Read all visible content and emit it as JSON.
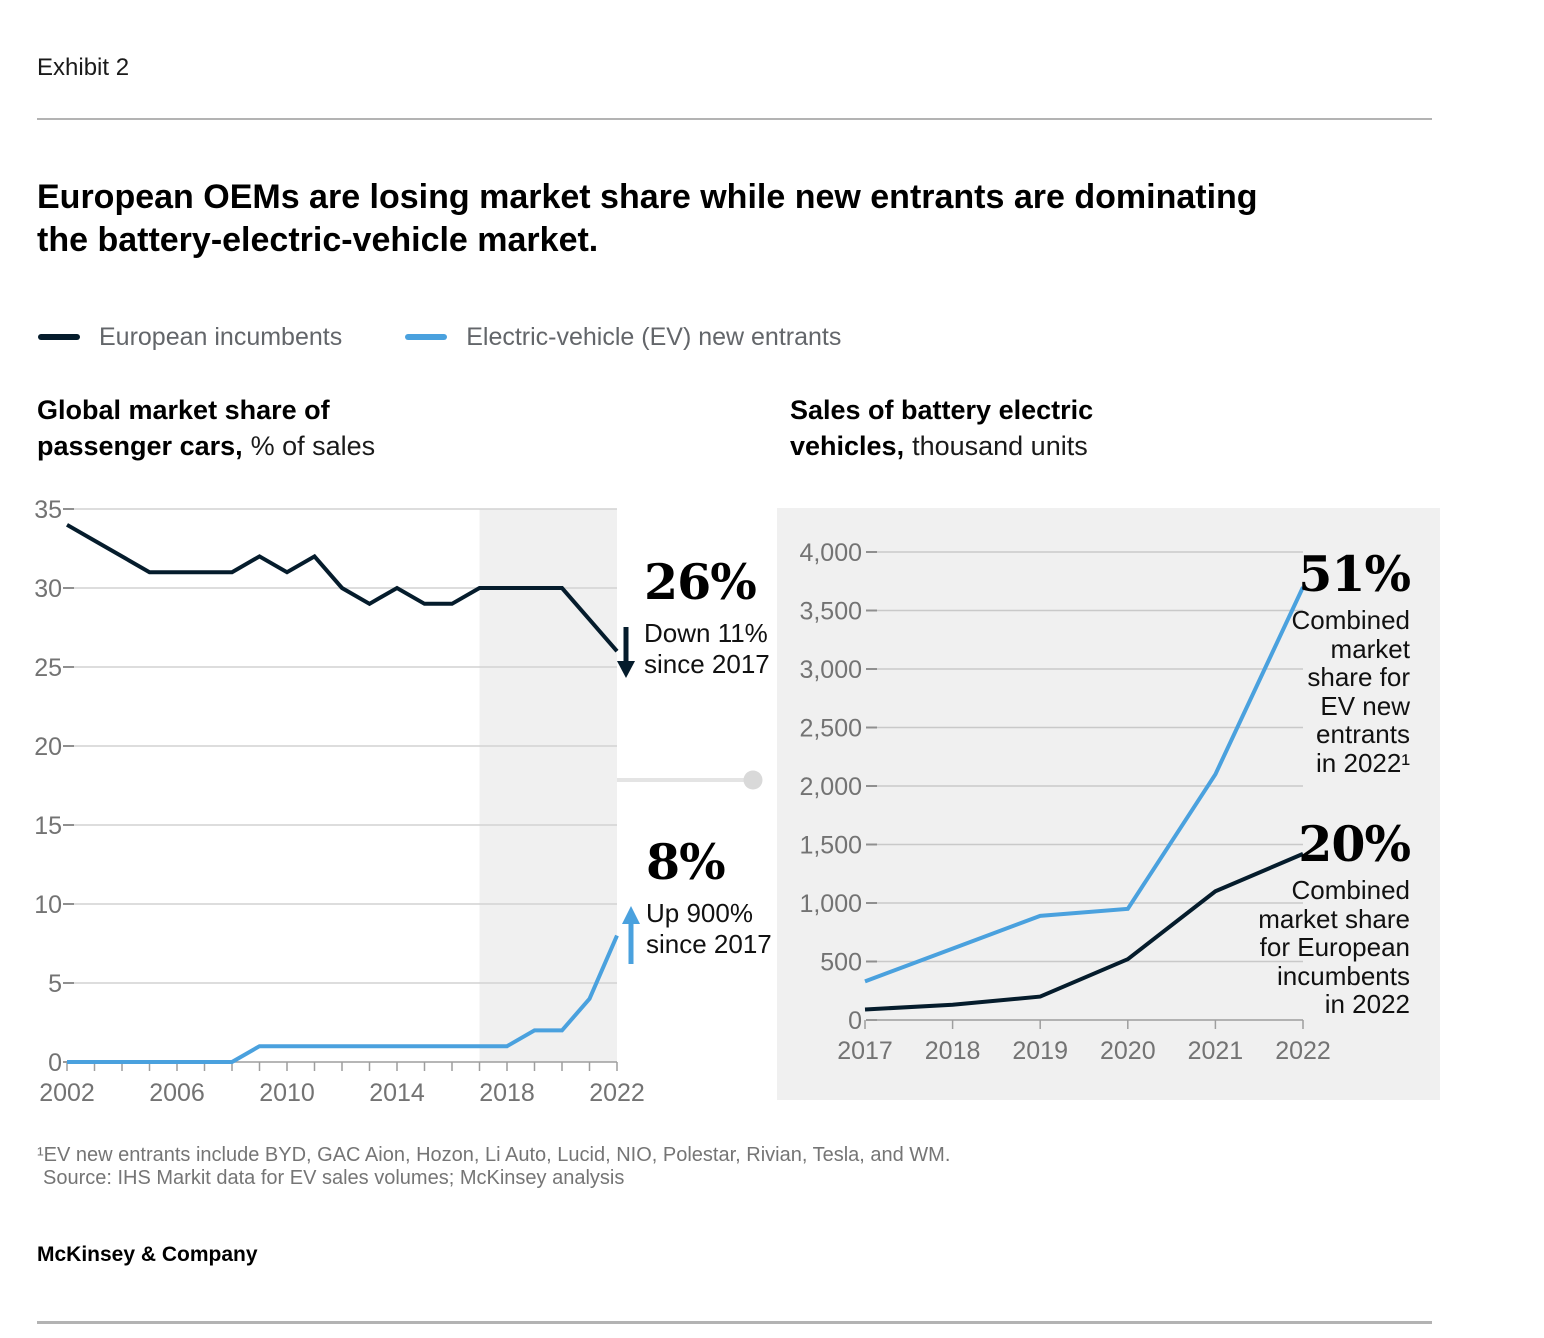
{
  "page": {
    "exhibit_label": "Exhibit 2",
    "title_line1": "European OEMs are losing market share while new entrants are dominating",
    "title_line2": "the battery-electric-vehicle market.",
    "footnote_line1": "¹EV new entrants include BYD, GAC Aion, Hozon, Li Auto, Lucid, NIO, Polestar, Rivian, Tesla, and WM.",
    "footnote_line2": "Source: IHS Markit data for EV sales volumes; McKinsey analysis",
    "logo": "McKinsey & Company"
  },
  "colors": {
    "incumbent_navy": "#051C2C",
    "ev_blue": "#4AA1DE",
    "panel_gray": "#F0F0F0"
  },
  "legend": {
    "items": [
      {
        "label": "European incumbents",
        "color": "#051C2C"
      },
      {
        "label": "Electric-vehicle (EV) new entrants",
        "color": "#4AA1DE"
      }
    ]
  },
  "left_chart": {
    "heading": {
      "bold_line1": "Global market share of",
      "bold_line2": "passenger cars,",
      "regular": "% of sales"
    },
    "annotation_top": {
      "value": "26%",
      "line1": "Down 11%",
      "line2": "since 2017"
    },
    "annotation_bottom": {
      "value": "8%",
      "line1": "Up 900%",
      "line2": "since 2017"
    }
  },
  "right_chart": {
    "heading": {
      "bold_line1": "Sales of battery electric",
      "bold_line2": "vehicles,",
      "regular": "thousand units"
    },
    "annotation_top": {
      "value": "51%",
      "lines": [
        "Combined",
        "market",
        "share for",
        "EV new",
        "entrants",
        "in 2022¹"
      ]
    },
    "annotation_bottom": {
      "value": "20%",
      "lines": [
        "Combined",
        "market share",
        "for European",
        "incumbents",
        "in 2022"
      ]
    }
  },
  "chart_data": [
    {
      "type": "line",
      "title": "Global market share of passenger cars, % of sales",
      "xlabel": "",
      "ylabel": "% of sales",
      "x": [
        2002,
        2003,
        2004,
        2005,
        2006,
        2007,
        2008,
        2009,
        2010,
        2011,
        2012,
        2013,
        2014,
        2015,
        2016,
        2017,
        2018,
        2019,
        2020,
        2021,
        2022
      ],
      "series": [
        {
          "name": "European incumbents",
          "color": "#051C2C",
          "values": [
            34,
            33,
            32,
            31,
            31,
            31,
            31,
            32,
            31,
            32,
            30,
            29,
            30,
            29,
            29,
            30,
            30,
            30,
            30,
            28,
            26
          ]
        },
        {
          "name": "Electric-vehicle (EV) new entrants",
          "color": "#4AA1DE",
          "values": [
            0,
            0,
            0,
            0,
            0,
            0,
            0,
            1,
            1,
            1,
            1,
            1,
            1,
            1,
            1,
            1,
            1,
            2,
            2,
            4,
            8
          ]
        }
      ],
      "ylim": [
        0,
        35
      ],
      "y_ticks": [
        0,
        5,
        10,
        15,
        20,
        25,
        30,
        35
      ],
      "y_tick_labels": [
        "0",
        "5",
        "10",
        "15",
        "20",
        "25",
        "30",
        "35"
      ],
      "x_tick_labels": [
        "2002",
        "2006",
        "2010",
        "2014",
        "2018",
        "2022"
      ],
      "highlight_span": [
        2017,
        2022
      ],
      "grid": true,
      "legend_position": "top"
    },
    {
      "type": "line",
      "title": "Sales of battery electric vehicles, thousand units",
      "xlabel": "",
      "ylabel": "thousand units",
      "x": [
        2017,
        2018,
        2019,
        2020,
        2021,
        2022
      ],
      "series": [
        {
          "name": "Electric-vehicle (EV) new entrants",
          "color": "#4AA1DE",
          "values": [
            330,
            610,
            890,
            950,
            2100,
            3700
          ]
        },
        {
          "name": "European incumbents",
          "color": "#051C2C",
          "values": [
            90,
            130,
            200,
            520,
            1100,
            1420
          ]
        }
      ],
      "ylim": [
        0,
        4000
      ],
      "y_ticks": [
        0,
        500,
        1000,
        1500,
        2000,
        2500,
        3000,
        3500,
        4000
      ],
      "y_tick_labels": [
        "0",
        "500",
        "1,000",
        "1,500",
        "2,000",
        "2,500",
        "3,000",
        "3,500",
        "4,000"
      ],
      "x_tick_labels": [
        "2017",
        "2018",
        "2019",
        "2020",
        "2021",
        "2022"
      ],
      "grid": true,
      "legend_position": "top"
    }
  ]
}
